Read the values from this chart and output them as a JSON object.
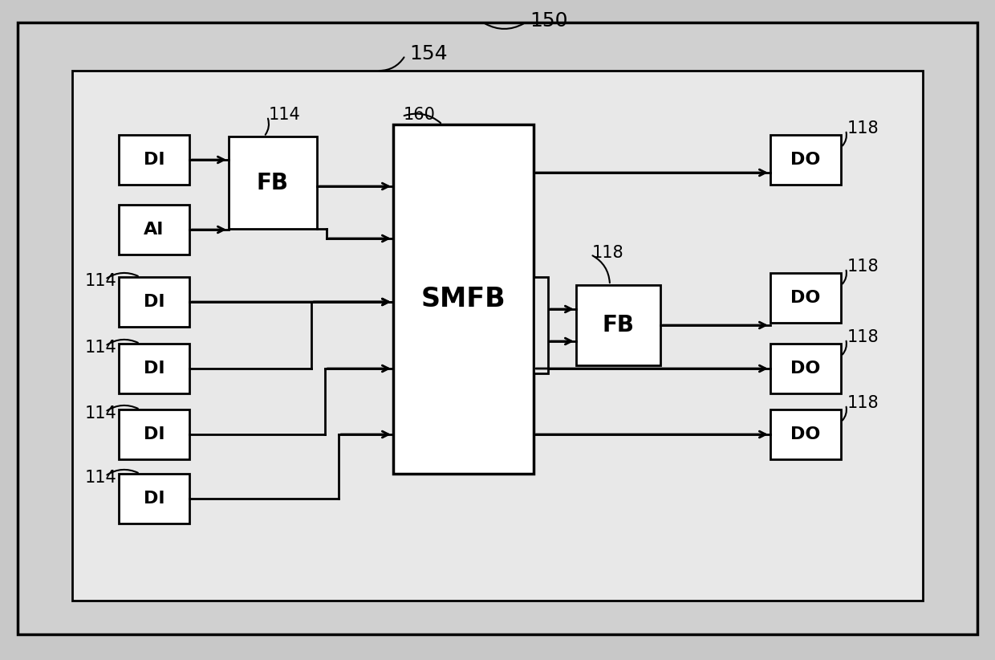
{
  "bg_outer": "#c8c8c8",
  "bg_outer_box": "#c8c8c8",
  "bg_inner_box": "#e8e8e8",
  "box_fc": "#ffffff",
  "lc": "#000000",
  "label_150": "150",
  "label_154": "154",
  "label_160": "160",
  "label_114_fb": "114",
  "label_118_do1": "118",
  "label_118_fb": "118",
  "label_118_do2": "118",
  "label_118_do3": "118",
  "label_118_do4": "118",
  "label_114_di2": "114",
  "label_114_di3": "114",
  "label_114_di4": "114",
  "label_114_di5": "114",
  "label_SMFB": "SMFB",
  "label_FB1": "FB",
  "label_FB2": "FB",
  "label_DI1": "DI",
  "label_AI": "AI",
  "label_DI2": "DI",
  "label_DI3": "DI",
  "label_DI4": "DI",
  "label_DI5": "DI",
  "label_DO1": "DO",
  "label_DO2": "DO",
  "label_DO3": "DO",
  "label_DO4": "DO"
}
